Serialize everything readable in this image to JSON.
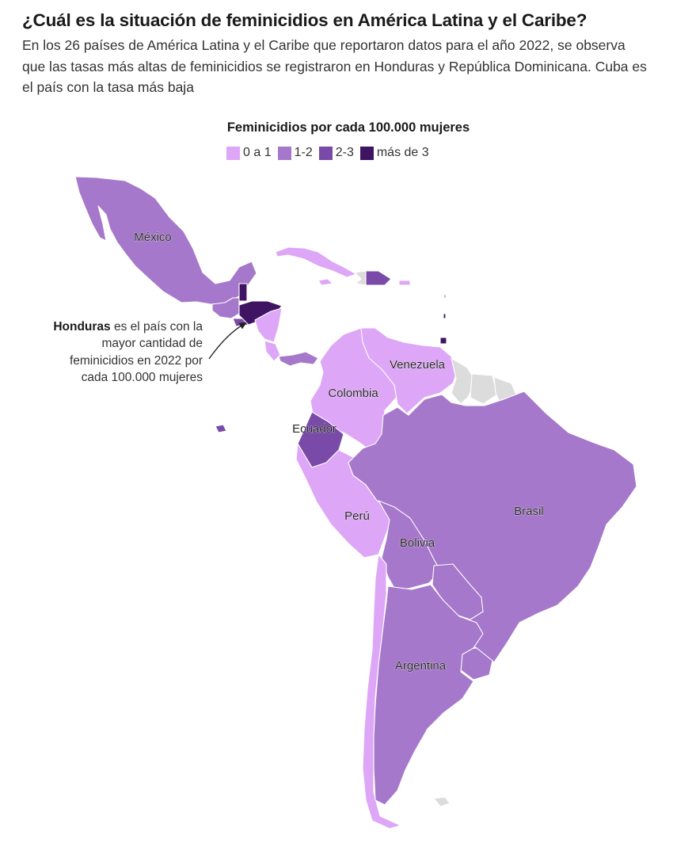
{
  "header": {
    "title": "¿Cuál es la situación de feminicidios en América Latina y el Caribe?",
    "subtitle": "En los 26 países de América Latina y el Caribe que reportaron datos para el año 2022, se observa que las tasas más altas de feminicidios se registraron en Honduras y República Dominicana. Cuba es el país con la tasa más baja"
  },
  "legend": {
    "title": "Feminicidios por cada 100.000 mujeres",
    "items": [
      {
        "label": "0 a 1",
        "color": "#dda6f6"
      },
      {
        "label": "1-2",
        "color": "#a678cb"
      },
      {
        "label": "2-3",
        "color": "#7a4aa8"
      },
      {
        "label": "más de 3",
        "color": "#3f1563"
      }
    ],
    "no_data_color": "#dcdcdc"
  },
  "map_labels": {
    "mexico": "México",
    "venezuela": "Venezuela",
    "colombia": "Colombia",
    "ecuador": "Ecuador",
    "peru": "Perú",
    "bolivia": "Bolivia",
    "brasil": "Brasil",
    "argentina": "Argentina"
  },
  "annotation": {
    "bold": "Honduras",
    "text": " es el país con la mayor cantidad de feminicidios en 2022 por cada 100.000 mujeres"
  }
}
